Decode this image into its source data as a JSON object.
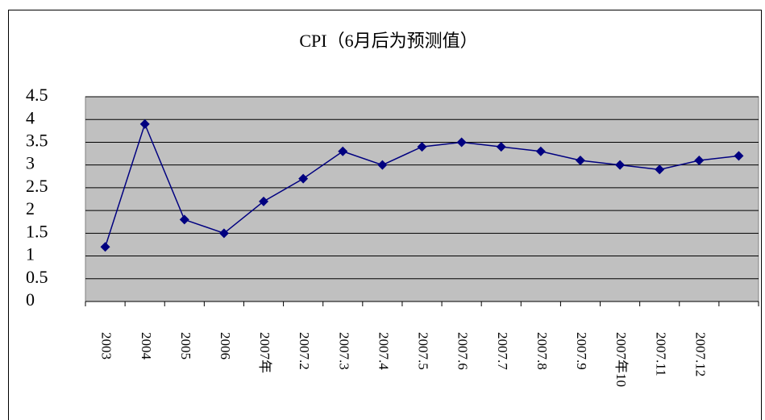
{
  "chart_data": {
    "type": "line",
    "title": "CPI（6月后为预测值）",
    "categories": [
      "2003",
      "2004",
      "2005",
      "2006",
      "2007年",
      "2007.2",
      "2007.3",
      "2007.4",
      "2007.5",
      "2007.6",
      "2007.7",
      "2007.8",
      "2007.9",
      "2007年10",
      "2007.11",
      "2007.12",
      null
    ],
    "values": [
      1.2,
      3.9,
      1.8,
      1.5,
      2.2,
      2.7,
      3.3,
      3.0,
      3.4,
      3.5,
      3.4,
      3.3,
      3.1,
      3.0,
      2.9,
      3.1,
      3.2
    ],
    "color": "#000080",
    "ylim": [
      0,
      4.5
    ],
    "yticks": [
      0,
      0.5,
      1,
      1.5,
      2,
      2.5,
      3,
      3.5,
      4,
      4.5
    ],
    "grid": true
  }
}
